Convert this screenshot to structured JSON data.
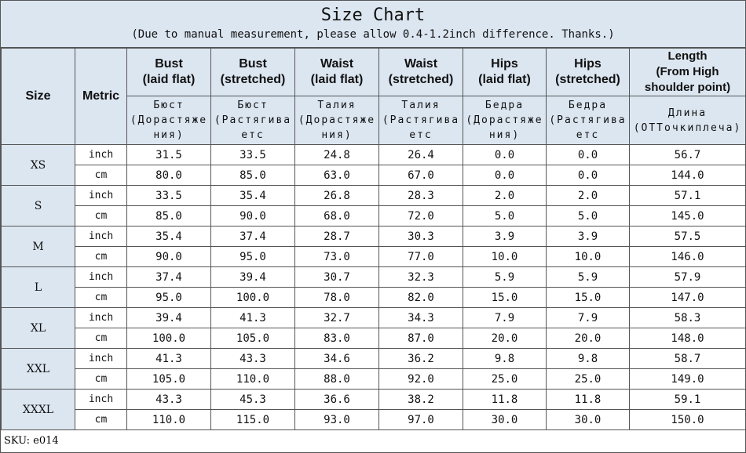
{
  "title": "Size Chart",
  "subtitle": "(Due to manual measurement, please allow 0.4-1.2inch difference. Thanks.)",
  "table": {
    "headers": [
      "Size",
      "Metric",
      "Bust\n(laid flat)",
      "Bust\n(stretched)",
      "Waist\n(laid flat)",
      "Waist\n(stretched)",
      "Hips\n(laid flat)",
      "Hips\n(stretched)",
      "Length\n(From High shoulder point)"
    ],
    "subheaders": [
      "Бюст\n(Дорастяжения)",
      "Бюст\n(Растягиваетс",
      "Талия\n(Дорастяжения)",
      "Талия\n(Растягиваетс",
      "Бедра\n(Дорастяжения)",
      "Бедра\n(Растягиваетс",
      "Длина\n(ОТТочкиплеча)"
    ],
    "rows": [
      {
        "size": "XS",
        "lines": [
          {
            "metric": "inch",
            "values": [
              "31.5",
              "33.5",
              "24.8",
              "26.4",
              "0.0",
              "0.0",
              "56.7"
            ]
          },
          {
            "metric": "cm",
            "values": [
              "80.0",
              "85.0",
              "63.0",
              "67.0",
              "0.0",
              "0.0",
              "144.0"
            ]
          }
        ]
      },
      {
        "size": "S",
        "lines": [
          {
            "metric": "inch",
            "values": [
              "33.5",
              "35.4",
              "26.8",
              "28.3",
              "2.0",
              "2.0",
              "57.1"
            ]
          },
          {
            "metric": "cm",
            "values": [
              "85.0",
              "90.0",
              "68.0",
              "72.0",
              "5.0",
              "5.0",
              "145.0"
            ]
          }
        ]
      },
      {
        "size": "M",
        "lines": [
          {
            "metric": "inch",
            "values": [
              "35.4",
              "37.4",
              "28.7",
              "30.3",
              "3.9",
              "3.9",
              "57.5"
            ]
          },
          {
            "metric": "cm",
            "values": [
              "90.0",
              "95.0",
              "73.0",
              "77.0",
              "10.0",
              "10.0",
              "146.0"
            ]
          }
        ]
      },
      {
        "size": "L",
        "lines": [
          {
            "metric": "inch",
            "values": [
              "37.4",
              "39.4",
              "30.7",
              "32.3",
              "5.9",
              "5.9",
              "57.9"
            ]
          },
          {
            "metric": "cm",
            "values": [
              "95.0",
              "100.0",
              "78.0",
              "82.0",
              "15.0",
              "15.0",
              "147.0"
            ]
          }
        ]
      },
      {
        "size": "XL",
        "lines": [
          {
            "metric": "inch",
            "values": [
              "39.4",
              "41.3",
              "32.7",
              "34.3",
              "7.9",
              "7.9",
              "58.3"
            ]
          },
          {
            "metric": "cm",
            "values": [
              "100.0",
              "105.0",
              "83.0",
              "87.0",
              "20.0",
              "20.0",
              "148.0"
            ]
          }
        ]
      },
      {
        "size": "XXL",
        "lines": [
          {
            "metric": "inch",
            "values": [
              "41.3",
              "43.3",
              "34.6",
              "36.2",
              "9.8",
              "9.8",
              "58.7"
            ]
          },
          {
            "metric": "cm",
            "values": [
              "105.0",
              "110.0",
              "88.0",
              "92.0",
              "25.0",
              "25.0",
              "149.0"
            ]
          }
        ]
      },
      {
        "size": "XXXL",
        "lines": [
          {
            "metric": "inch",
            "values": [
              "43.3",
              "45.3",
              "36.6",
              "38.2",
              "11.8",
              "11.8",
              "59.1"
            ]
          },
          {
            "metric": "cm",
            "values": [
              "110.0",
              "115.0",
              "93.0",
              "97.0",
              "30.0",
              "30.0",
              "150.0"
            ]
          }
        ]
      }
    ]
  },
  "sku": "SKU: e014"
}
